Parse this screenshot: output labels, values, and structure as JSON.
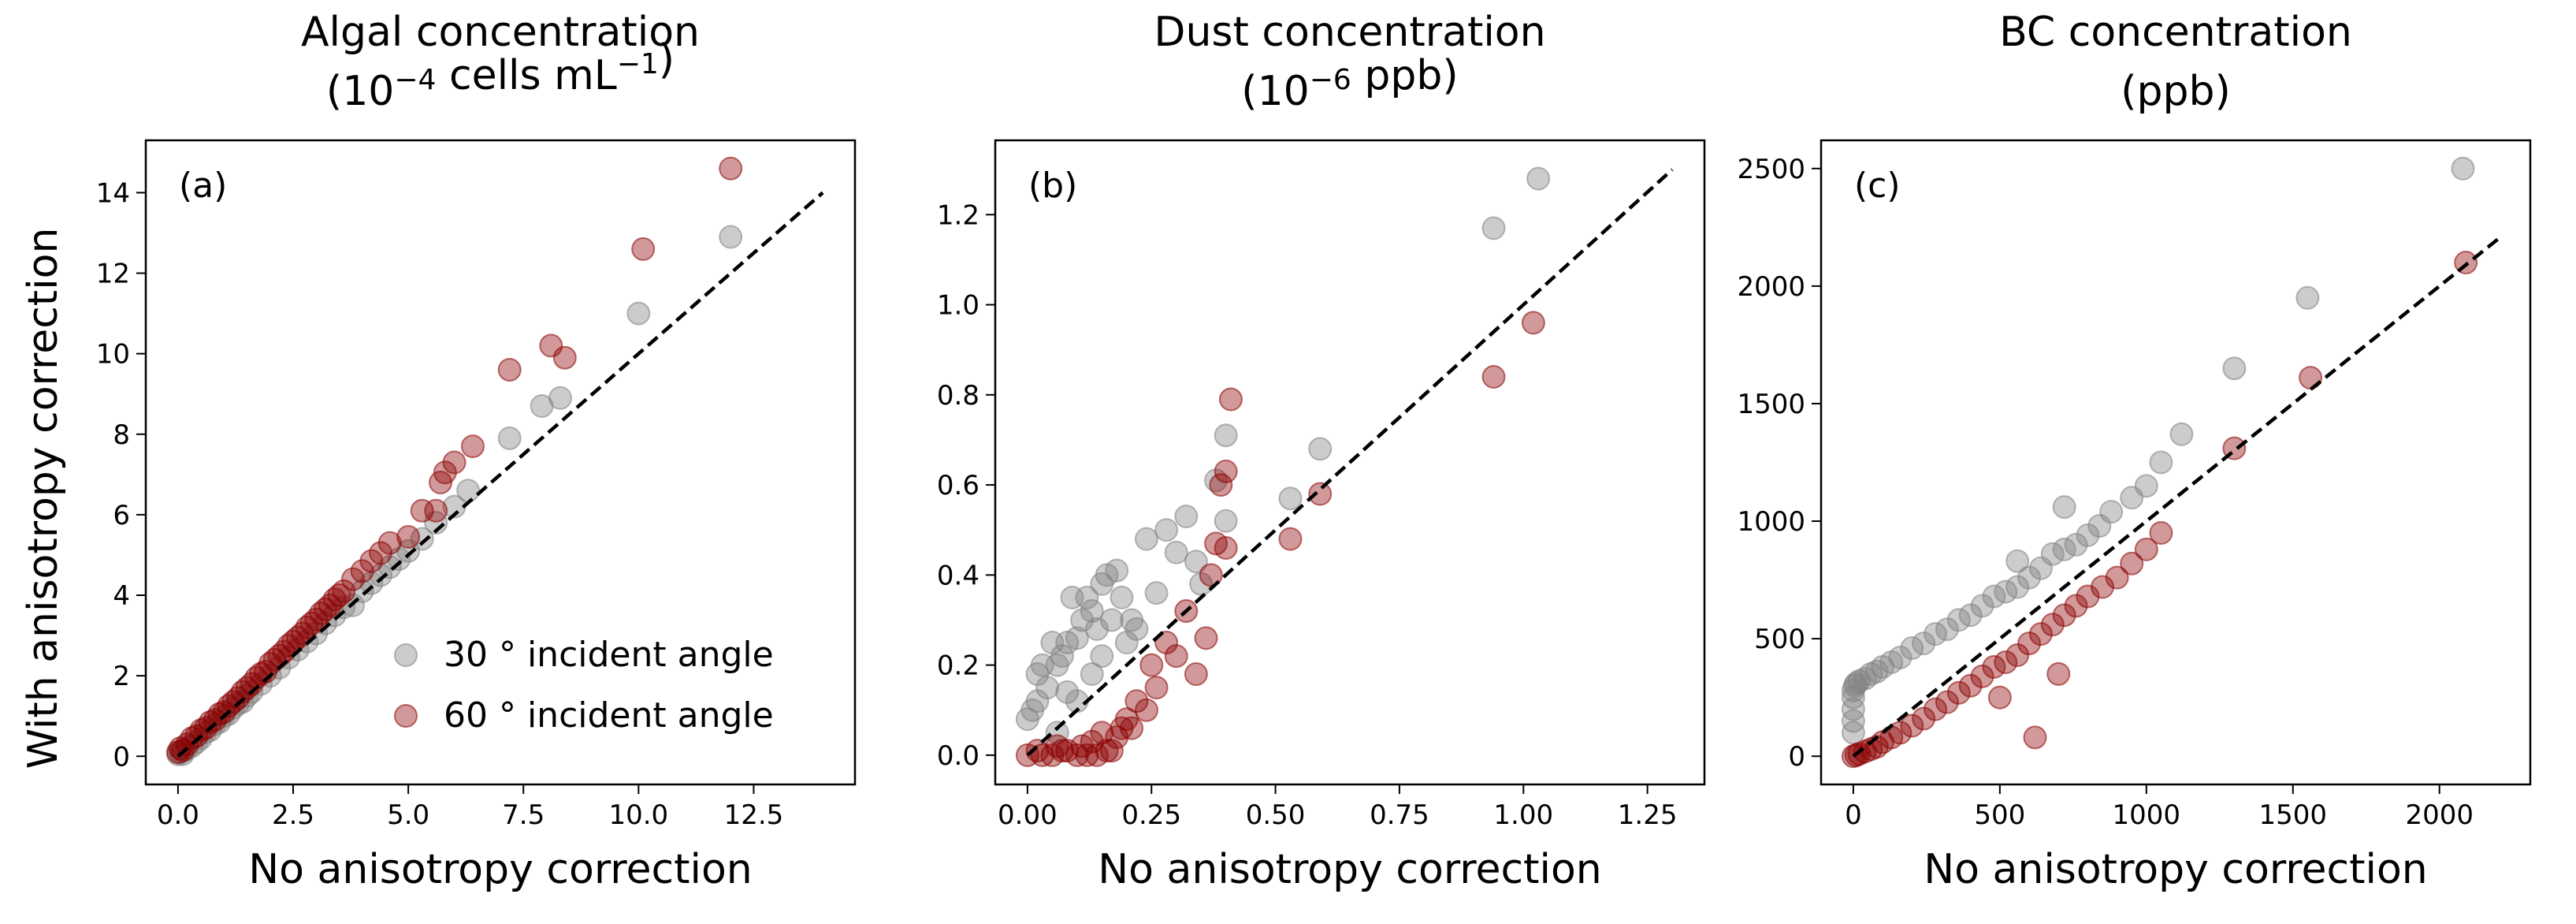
{
  "figure": {
    "ylabel": "With anisotropy correction",
    "xlabel": "No anisotropy correction"
  },
  "legend": {
    "placement": "lower-right of panel (a)",
    "items": [
      {
        "label": "30 ° incident angle",
        "color": "#808080"
      },
      {
        "label": "60 ° incident angle",
        "color": "#8b0000"
      }
    ]
  },
  "colors": {
    "series_30": "#808080",
    "series_60": "#8b0000",
    "one_to_one": "#000000"
  },
  "panels": [
    {
      "tag": "(a)",
      "title_lines": [
        [
          {
            "t": "Algal concentration"
          }
        ],
        [
          {
            "t": "(10"
          },
          {
            "t": "−4",
            "sup": true
          },
          {
            "t": " cells mL"
          },
          {
            "t": "−1",
            "sup": true
          },
          {
            "t": ")"
          }
        ]
      ],
      "xticks": [
        "0.0",
        "2.5",
        "5.0",
        "7.5",
        "10.0",
        "12.5"
      ],
      "yticks": [
        "0",
        "2",
        "4",
        "6",
        "8",
        "10",
        "12",
        "14"
      ]
    },
    {
      "tag": "(b)",
      "title_lines": [
        [
          {
            "t": "Dust concentration"
          }
        ],
        [
          {
            "t": "(10"
          },
          {
            "t": "−6",
            "sup": true
          },
          {
            "t": " ppb)"
          }
        ]
      ],
      "xticks": [
        "0.00",
        "0.25",
        "0.50",
        "0.75",
        "1.00",
        "1.25"
      ],
      "yticks": [
        "0.0",
        "0.2",
        "0.4",
        "0.6",
        "0.8",
        "1.0",
        "1.2"
      ]
    },
    {
      "tag": "(c)",
      "title_lines": [
        [
          {
            "t": "BC concentration"
          }
        ],
        [
          {
            "t": "(ppb)"
          }
        ]
      ],
      "xticks": [
        "0",
        "500",
        "1000",
        "1500",
        "2000"
      ],
      "yticks": [
        "0",
        "500",
        "1000",
        "1500",
        "2000",
        "2500"
      ]
    }
  ],
  "chart_data": [
    {
      "type": "scatter",
      "title": "Algal concentration (10−4 cells mL−1)",
      "xlabel": "No anisotropy correction",
      "ylabel": "With anisotropy correction",
      "xlim": [
        -0.7,
        14.7
      ],
      "ylim": [
        -0.7,
        15.3
      ],
      "xtick_values": [
        0,
        2.5,
        5,
        7.5,
        10,
        12.5
      ],
      "ytick_values": [
        0,
        2,
        4,
        6,
        8,
        10,
        12,
        14
      ],
      "grid": false,
      "reference_line": {
        "style": "dashed",
        "x": [
          0,
          14
        ],
        "y": [
          0,
          14
        ]
      },
      "series": [
        {
          "name": "30 ° incident angle",
          "color": "#808080",
          "x": [
            0,
            0.05,
            0.1,
            0.15,
            0.2,
            0.3,
            0.4,
            0.5,
            0.6,
            0.7,
            0.8,
            0.9,
            1.0,
            1.1,
            1.2,
            1.3,
            1.4,
            1.5,
            1.6,
            1.8,
            2.0,
            2.2,
            2.4,
            2.6,
            2.8,
            3.0,
            3.2,
            3.4,
            3.6,
            3.8,
            4.0,
            4.2,
            4.4,
            4.6,
            4.8,
            5.0,
            5.3,
            5.6,
            6.0,
            6.3,
            7.2,
            7.9,
            8.3,
            10.0,
            12.0
          ],
          "y": [
            0.05,
            0.1,
            0.05,
            0.15,
            0.2,
            0.25,
            0.35,
            0.45,
            0.6,
            0.65,
            0.8,
            0.85,
            1.0,
            1.05,
            1.2,
            1.3,
            1.35,
            1.5,
            1.6,
            1.8,
            2.0,
            2.2,
            2.45,
            2.65,
            2.85,
            3.05,
            3.3,
            3.5,
            3.7,
            3.75,
            4.1,
            4.3,
            4.5,
            4.7,
            4.9,
            5.1,
            5.4,
            5.8,
            6.2,
            6.6,
            7.9,
            8.7,
            8.9,
            11.0,
            12.9
          ]
        },
        {
          "name": "60 ° incident angle",
          "color": "#8b0000",
          "x": [
            0,
            0.05,
            0.1,
            0.2,
            0.3,
            0.4,
            0.5,
            0.6,
            0.7,
            0.8,
            0.9,
            1.0,
            1.1,
            1.2,
            1.3,
            1.4,
            1.5,
            1.6,
            1.7,
            1.8,
            1.9,
            2.0,
            2.1,
            2.2,
            2.3,
            2.4,
            2.5,
            2.6,
            2.7,
            2.8,
            2.9,
            3.0,
            3.1,
            3.2,
            3.3,
            3.4,
            3.5,
            3.6,
            3.8,
            4.0,
            4.2,
            4.4,
            4.6,
            5.0,
            5.3,
            5.6,
            5.7,
            5.8,
            6.0,
            6.4,
            7.2,
            8.1,
            8.4,
            10.1,
            12.0
          ],
          "y": [
            0.1,
            0.2,
            0.15,
            0.3,
            0.45,
            0.5,
            0.65,
            0.7,
            0.85,
            0.9,
            1.05,
            1.1,
            1.25,
            1.35,
            1.45,
            1.6,
            1.7,
            1.8,
            1.95,
            2.05,
            2.1,
            2.3,
            2.4,
            2.5,
            2.6,
            2.75,
            2.85,
            2.95,
            3.05,
            3.2,
            3.3,
            3.4,
            3.55,
            3.65,
            3.75,
            3.9,
            4.0,
            4.1,
            4.4,
            4.6,
            4.85,
            5.05,
            5.3,
            5.45,
            6.1,
            6.1,
            6.8,
            7.05,
            7.3,
            7.7,
            9.6,
            10.2,
            9.9,
            12.6,
            14.6
          ]
        }
      ]
    },
    {
      "type": "scatter",
      "title": "Dust concentration (10−6 ppb)",
      "xlabel": "No anisotropy correction",
      "ylabel": "",
      "xlim": [
        -0.065,
        1.365
      ],
      "ylim": [
        -0.065,
        1.365
      ],
      "xtick_values": [
        0,
        0.25,
        0.5,
        0.75,
        1.0,
        1.25
      ],
      "ytick_values": [
        0,
        0.2,
        0.4,
        0.6,
        0.8,
        1.0,
        1.2
      ],
      "grid": false,
      "reference_line": {
        "style": "dashed",
        "x": [
          0,
          1.3
        ],
        "y": [
          0,
          1.3
        ]
      },
      "series": [
        {
          "name": "30 ° incident angle",
          "color": "#808080",
          "x": [
            0.0,
            0.01,
            0.02,
            0.02,
            0.03,
            0.04,
            0.05,
            0.06,
            0.07,
            0.08,
            0.09,
            0.1,
            0.11,
            0.12,
            0.13,
            0.14,
            0.15,
            0.16,
            0.17,
            0.18,
            0.19,
            0.2,
            0.21,
            0.22,
            0.24,
            0.26,
            0.28,
            0.3,
            0.32,
            0.34,
            0.35,
            0.38,
            0.4,
            0.4,
            0.53,
            0.59,
            0.94,
            1.03,
            0.1,
            0.13,
            0.15,
            0.06,
            0.08
          ],
          "y": [
            0.08,
            0.1,
            0.12,
            0.18,
            0.2,
            0.15,
            0.25,
            0.2,
            0.22,
            0.25,
            0.35,
            0.26,
            0.3,
            0.35,
            0.32,
            0.28,
            0.38,
            0.4,
            0.3,
            0.41,
            0.35,
            0.25,
            0.3,
            0.28,
            0.48,
            0.36,
            0.5,
            0.45,
            0.53,
            0.43,
            0.38,
            0.61,
            0.71,
            0.52,
            0.57,
            0.68,
            1.17,
            1.28,
            0.12,
            0.18,
            0.22,
            0.05,
            0.14
          ]
        },
        {
          "name": "60 ° incident angle",
          "color": "#8b0000",
          "x": [
            0.0,
            0.02,
            0.03,
            0.05,
            0.06,
            0.08,
            0.1,
            0.12,
            0.13,
            0.15,
            0.16,
            0.18,
            0.19,
            0.2,
            0.22,
            0.24,
            0.25,
            0.26,
            0.28,
            0.3,
            0.32,
            0.34,
            0.36,
            0.37,
            0.38,
            0.39,
            0.4,
            0.4,
            0.41,
            0.53,
            0.59,
            0.94,
            1.02,
            0.07,
            0.11,
            0.14,
            0.17,
            0.21
          ],
          "y": [
            0.0,
            0.01,
            0.0,
            0.0,
            0.02,
            0.01,
            0.0,
            0.0,
            0.03,
            0.05,
            0.01,
            0.04,
            0.06,
            0.08,
            0.12,
            0.1,
            0.2,
            0.15,
            0.25,
            0.22,
            0.32,
            0.18,
            0.26,
            0.4,
            0.47,
            0.6,
            0.63,
            0.46,
            0.79,
            0.48,
            0.58,
            0.84,
            0.96,
            0.01,
            0.02,
            0.0,
            0.01,
            0.06
          ]
        }
      ]
    },
    {
      "type": "scatter",
      "title": "BC concentration (ppb)",
      "xlabel": "No anisotropy correction",
      "ylabel": "",
      "xlim": [
        -110,
        2310
      ],
      "ylim": [
        -120,
        2620
      ],
      "xtick_values": [
        0,
        500,
        1000,
        1500,
        2000
      ],
      "ytick_values": [
        0,
        500,
        1000,
        1500,
        2000,
        2500
      ],
      "grid": false,
      "reference_line": {
        "style": "dashed",
        "x": [
          0,
          2200
        ],
        "y": [
          0,
          2200
        ]
      },
      "series": [
        {
          "name": "30 ° incident angle",
          "color": "#808080",
          "x": [
            0,
            0,
            0,
            0,
            0,
            5,
            10,
            20,
            40,
            60,
            80,
            100,
            130,
            160,
            200,
            240,
            280,
            320,
            360,
            400,
            440,
            480,
            520,
            560,
            600,
            640,
            680,
            720,
            760,
            800,
            840,
            880,
            950,
            1000,
            1050,
            1120,
            1300,
            1550,
            2080,
            720,
            560
          ],
          "y": [
            100,
            150,
            200,
            250,
            280,
            300,
            310,
            320,
            330,
            350,
            360,
            380,
            400,
            420,
            460,
            480,
            520,
            540,
            580,
            600,
            640,
            680,
            700,
            720,
            760,
            800,
            860,
            880,
            900,
            940,
            980,
            1040,
            1100,
            1150,
            1250,
            1370,
            1650,
            1950,
            2500,
            1060,
            830
          ]
        },
        {
          "name": "60 ° incident angle",
          "color": "#8b0000",
          "x": [
            0,
            10,
            20,
            40,
            60,
            80,
            100,
            130,
            160,
            200,
            240,
            280,
            320,
            360,
            400,
            440,
            480,
            520,
            560,
            600,
            640,
            680,
            720,
            760,
            800,
            850,
            900,
            950,
            1000,
            1050,
            1300,
            1560,
            2090,
            620,
            500,
            700
          ],
          "y": [
            0,
            5,
            10,
            20,
            30,
            40,
            60,
            80,
            100,
            130,
            160,
            200,
            230,
            270,
            300,
            340,
            380,
            400,
            430,
            480,
            520,
            560,
            600,
            640,
            680,
            720,
            760,
            820,
            880,
            950,
            1310,
            1610,
            2100,
            80,
            250,
            350
          ]
        }
      ]
    }
  ]
}
